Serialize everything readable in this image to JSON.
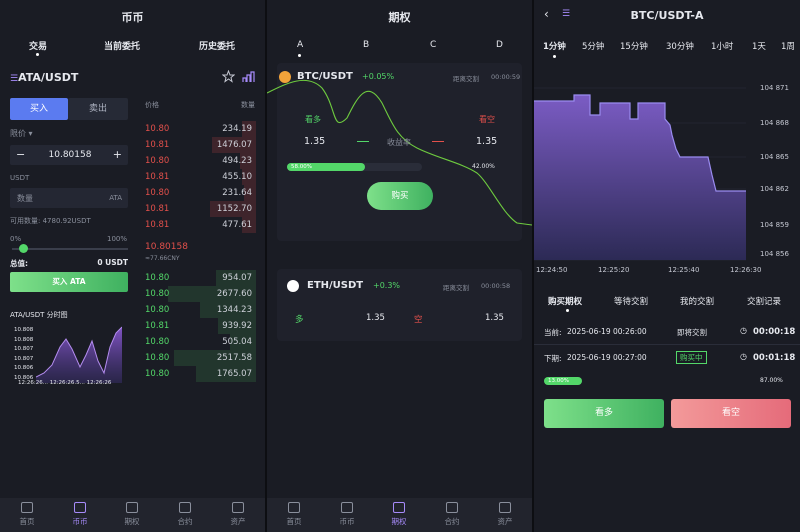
{
  "spot": {
    "title": "币币",
    "tabs": [
      "交易",
      "当前委托",
      "历史委托"
    ],
    "pair": "ATA/USDT",
    "buy_tab": "买入",
    "sell_tab": "卖出",
    "order_type": "限价",
    "price_value": "10.80158",
    "minus": "−",
    "plus": "+",
    "quote_label": "USDT",
    "amount_placeholder": "数量",
    "amount_unit": "ATA",
    "available": "可用数量: 4780.92USDT",
    "pct_min": "0%",
    "pct_max": "100%",
    "total_label": "总值:",
    "total_value": "0 USDT",
    "submit": "买入 ATA",
    "mini_chart_title": "ATA/USDT 分时图",
    "mini_y": [
      "10.808",
      "10.808",
      "10.807",
      "10.807",
      "10.806",
      "10.806"
    ],
    "mini_x": "12:26:26... 12:26:26.5... 12:26:26",
    "ob_header_price": "价格",
    "ob_header_qty": "数量",
    "asks": [
      {
        "p": "10.80",
        "q": "234.19"
      },
      {
        "p": "10.81",
        "q": "1476.07"
      },
      {
        "p": "10.80",
        "q": "494.23"
      },
      {
        "p": "10.81",
        "q": "455.10"
      },
      {
        "p": "10.80",
        "q": "231.64"
      },
      {
        "p": "10.81",
        "q": "1152.70"
      },
      {
        "p": "10.81",
        "q": "477.61"
      }
    ],
    "last_price": "10.80158",
    "last_cny": "≈77.66CNY",
    "bids": [
      {
        "p": "10.80",
        "q": "954.07"
      },
      {
        "p": "10.80",
        "q": "2677.60"
      },
      {
        "p": "10.80",
        "q": "1344.23"
      },
      {
        "p": "10.81",
        "q": "939.92"
      },
      {
        "p": "10.80",
        "q": "505.04"
      },
      {
        "p": "10.80",
        "q": "2517.58"
      },
      {
        "p": "10.80",
        "q": "1765.07"
      }
    ]
  },
  "options": {
    "title": "期权",
    "tabs": [
      "A",
      "B",
      "C",
      "D"
    ],
    "card1": {
      "pair": "BTC/USDT",
      "change": "+0.05%",
      "countdown_label": "距离交割",
      "countdown": "00:00:59",
      "long": "看多",
      "short": "看空",
      "long_rate": "1.35",
      "yield_label": "收益率",
      "short_rate": "1.35",
      "long_pct": "58.00%",
      "short_pct": "42.00%",
      "buy": "购买"
    },
    "card2": {
      "pair": "ETH/USDT",
      "change": "+0.3%",
      "countdown_label": "距离交割",
      "countdown": "00:00:58",
      "long": "多",
      "long_rate": "1.35",
      "short": "空",
      "short_rate": "1.35"
    }
  },
  "detail": {
    "title": "BTC/USDT-A",
    "timeframes": [
      "1分钟",
      "5分钟",
      "15分钟",
      "30分钟",
      "1小时",
      "1天",
      "1周"
    ],
    "y_ticks": [
      "104 871",
      "104 868",
      "104 865",
      "104 862",
      "104 859",
      "104 856"
    ],
    "x_ticks": [
      "12:24:50",
      "12:25:20",
      "12:25:40",
      "12:26:30"
    ],
    "tabs": [
      "购买期权",
      "等待交割",
      "我的交割",
      "交割记录"
    ],
    "current": {
      "label": "当前:",
      "time": "2025-06-19 00:26:00",
      "status": "即将交割",
      "countdown": "00:00:18"
    },
    "next": {
      "label": "下期:",
      "time": "2025-06-19 00:27:00",
      "status": "购买中",
      "countdown": "00:01:18"
    },
    "long_pct": "13.00%",
    "short_pct": "87.00%",
    "long_btn": "看多",
    "short_btn": "看空"
  },
  "nav": [
    "首页",
    "币币",
    "期权",
    "合约",
    "资产"
  ],
  "colors": {
    "accent": "#5b7bf0",
    "up": "#53d769",
    "down": "#e2504b",
    "purple": "#a78bfa"
  }
}
